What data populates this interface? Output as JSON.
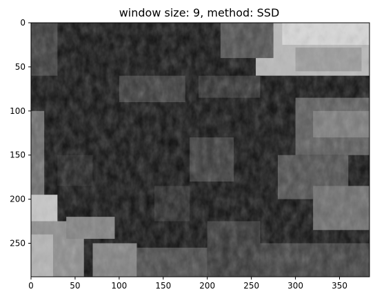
{
  "chart_data": {
    "type": "heatmap",
    "title": "window size: 9, method: SSD",
    "colormap": "gray",
    "xlabel": "",
    "ylabel": "",
    "xlim": [
      0,
      384
    ],
    "ylim": [
      288,
      0
    ],
    "xticks": [
      0,
      50,
      100,
      150,
      200,
      250,
      300,
      350
    ],
    "yticks": [
      0,
      50,
      100,
      150,
      200,
      250
    ],
    "xtick_labels": [
      "0",
      "50",
      "100",
      "150",
      "200",
      "250",
      "300",
      "350"
    ],
    "ytick_labels": [
      "0",
      "50",
      "100",
      "150",
      "200",
      "250"
    ],
    "image_size": {
      "width": 384,
      "height": 288
    },
    "background_value": 0.06,
    "regions": [
      {
        "x": [
          255,
          384
        ],
        "y": [
          0,
          60
        ],
        "value": 0.72
      },
      {
        "x": [
          285,
          384
        ],
        "y": [
          0,
          25
        ],
        "value": 0.85
      },
      {
        "x": [
          300,
          375
        ],
        "y": [
          28,
          55
        ],
        "value": 0.6
      },
      {
        "x": [
          215,
          275
        ],
        "y": [
          0,
          40
        ],
        "value": 0.3
      },
      {
        "x": [
          0,
          30
        ],
        "y": [
          0,
          60
        ],
        "value": 0.22
      },
      {
        "x": [
          100,
          175
        ],
        "y": [
          60,
          90
        ],
        "value": 0.22
      },
      {
        "x": [
          190,
          260
        ],
        "y": [
          60,
          85
        ],
        "value": 0.18
      },
      {
        "x": [
          300,
          384
        ],
        "y": [
          85,
          150
        ],
        "value": 0.35
      },
      {
        "x": [
          320,
          384
        ],
        "y": [
          100,
          130
        ],
        "value": 0.48
      },
      {
        "x": [
          280,
          360
        ],
        "y": [
          150,
          200
        ],
        "value": 0.3
      },
      {
        "x": [
          320,
          384
        ],
        "y": [
          185,
          235
        ],
        "value": 0.42
      },
      {
        "x": [
          180,
          230
        ],
        "y": [
          130,
          180
        ],
        "value": 0.22
      },
      {
        "x": [
          0,
          15
        ],
        "y": [
          100,
          200
        ],
        "value": 0.42
      },
      {
        "x": [
          0,
          30
        ],
        "y": [
          195,
          230
        ],
        "value": 0.78
      },
      {
        "x": [
          0,
          60
        ],
        "y": [
          225,
          288
        ],
        "value": 0.55
      },
      {
        "x": [
          0,
          25
        ],
        "y": [
          240,
          288
        ],
        "value": 0.7
      },
      {
        "x": [
          40,
          95
        ],
        "y": [
          220,
          245
        ],
        "value": 0.5
      },
      {
        "x": [
          70,
          120
        ],
        "y": [
          250,
          288
        ],
        "value": 0.5
      },
      {
        "x": [
          120,
          200
        ],
        "y": [
          255,
          288
        ],
        "value": 0.28
      },
      {
        "x": [
          200,
          260
        ],
        "y": [
          225,
          288
        ],
        "value": 0.2
      },
      {
        "x": [
          260,
          384
        ],
        "y": [
          250,
          288
        ],
        "value": 0.24
      },
      {
        "x": [
          140,
          180
        ],
        "y": [
          185,
          225
        ],
        "value": 0.15
      },
      {
        "x": [
          30,
          70
        ],
        "y": [
          150,
          185
        ],
        "value": 0.12
      }
    ]
  }
}
